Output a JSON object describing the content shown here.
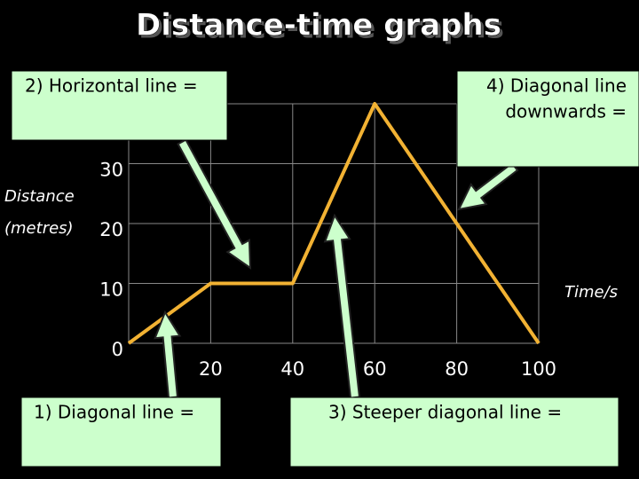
{
  "chart_data": {
    "type": "line",
    "title": "Distance-time graphs",
    "y_label": [
      "Distance",
      "(metres)"
    ],
    "x_label": "Time/s",
    "x": [
      0,
      20,
      40,
      60,
      100
    ],
    "values": [
      0,
      10,
      10,
      40,
      0
    ],
    "color": "#f2b233",
    "xlim": [
      0,
      100
    ],
    "xticks": [
      20,
      40,
      60,
      80,
      100
    ],
    "ylim": [
      0,
      40
    ],
    "yticks": [
      0,
      10,
      20,
      30
    ],
    "grid": true,
    "annotations": [
      {
        "lines": [
          "2) Horizontal line ="
        ]
      },
      {
        "lines": [
          "4) Diagonal line",
          "downwards ="
        ]
      },
      {
        "lines": [
          "1)  Diagonal line ="
        ]
      },
      {
        "lines": [
          "3) Steeper diagonal line ="
        ]
      }
    ]
  }
}
